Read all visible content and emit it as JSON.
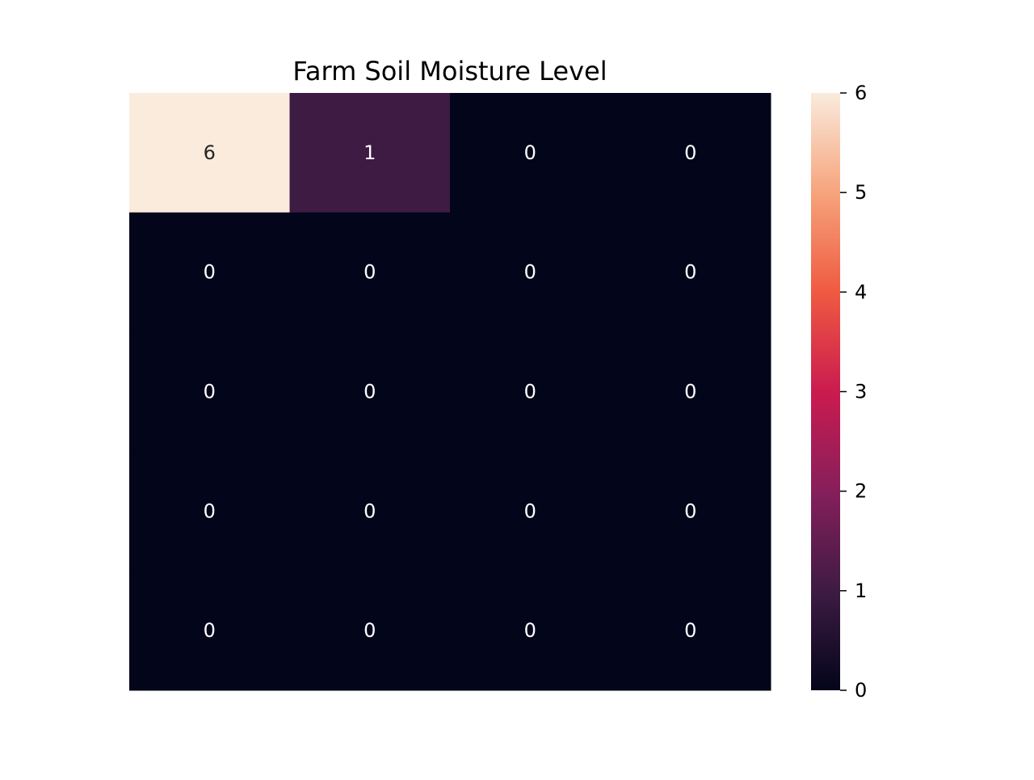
{
  "chart_data": {
    "type": "heatmap",
    "title": "Farm Soil Moisture Level",
    "xlabel": "",
    "ylabel": "",
    "rows": 5,
    "cols": 4,
    "values": [
      [
        6,
        1,
        0,
        0
      ],
      [
        0,
        0,
        0,
        0
      ],
      [
        0,
        0,
        0,
        0
      ],
      [
        0,
        0,
        0,
        0
      ],
      [
        0,
        0,
        0,
        0
      ]
    ],
    "annotations": true,
    "colorbar": {
      "min": 0,
      "max": 6,
      "ticks": [
        0,
        1,
        2,
        3,
        4,
        5,
        6
      ],
      "colormap": "rocket"
    },
    "colors": {
      "low": "#03051a",
      "high": "#faebdd",
      "annotation_dark": "#262626",
      "annotation_light": "#ffffff"
    }
  }
}
